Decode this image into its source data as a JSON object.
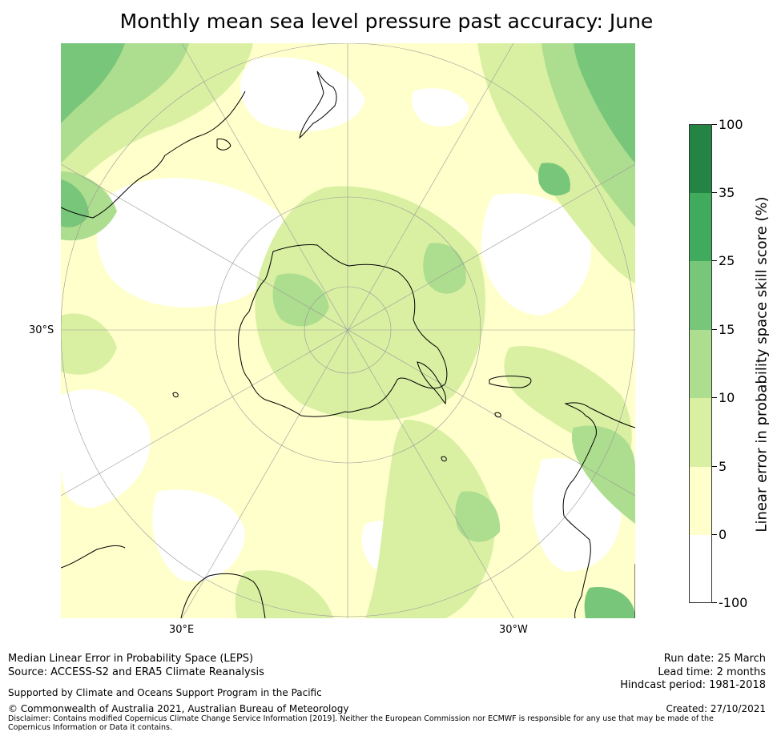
{
  "title": "Monthly mean sea level pressure past accuracy: June",
  "map": {
    "projection": "south polar stereographic",
    "lat_label": "30°S",
    "lon_labels": {
      "east": "30°E",
      "west": "30°W"
    },
    "land_outlines": [
      "Antarctica",
      "South America",
      "Australia",
      "New Zealand",
      "southern Africa",
      "Falkland Islands"
    ]
  },
  "colorbar": {
    "title": "Linear error in probability space skill score (%)",
    "ticks": [
      "100",
      "35",
      "25",
      "15",
      "10",
      "5",
      "0",
      "-100"
    ],
    "levels": [
      {
        "range": "-100 to 0",
        "color": "#ffffff"
      },
      {
        "range": "0 to 5",
        "color": "#ffffcc"
      },
      {
        "range": "5 to 10",
        "color": "#d9f0a3"
      },
      {
        "range": "10 to 15",
        "color": "#addd8e"
      },
      {
        "range": "15 to 25",
        "color": "#78c679"
      },
      {
        "range": "25 to 35",
        "color": "#41ab5d"
      },
      {
        "range": "35 to 100",
        "color": "#238443"
      }
    ]
  },
  "footer": {
    "left1": "Median Linear Error in Probability Space (LEPS)",
    "left2": "Source: ACCESS-S2 and ERA5 Climate Reanalysis",
    "supported": "Supported by Climate and Oceans Support Program in the Pacific",
    "copyright": "© Commonwealth of Australia 2021, Australian Bureau of Meteorology",
    "disclaimer": "Disclaimer: Contains modified Copernicus Climate Change Service Information [2019]. Neither the European Commission nor ECMWF is responsible for any use that may be made of the Copernicus Information or Data it contains.",
    "run_date": "Run date: 25 March",
    "lead_time": "Lead time: 2 months",
    "hindcast": "Hindcast period: 1981-2018",
    "created": "Created: 27/10/2021"
  }
}
